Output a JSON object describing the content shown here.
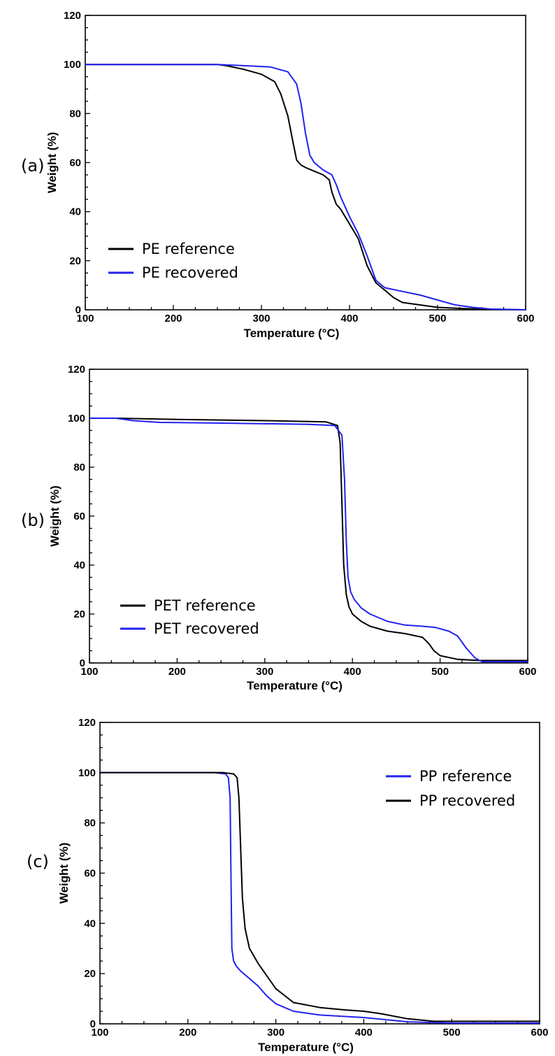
{
  "chart_data": [
    {
      "type": "line",
      "panel_label": "(a)",
      "xlabel": "Temperature (°C)",
      "ylabel": "Weight (%)",
      "xlim": [
        100,
        600
      ],
      "ylim": [
        0,
        120
      ],
      "xticks": [
        100,
        200,
        300,
        400,
        500,
        600
      ],
      "yticks": [
        0,
        20,
        40,
        60,
        80,
        100,
        120
      ],
      "grid": false,
      "legend_position": "bottom-left",
      "series": [
        {
          "name": "PE reference",
          "color": "#000000",
          "x": [
            100,
            250,
            260,
            280,
            300,
            315,
            322,
            330,
            336,
            340,
            345,
            350,
            360,
            370,
            377,
            380,
            385,
            390,
            400,
            410,
            420,
            430,
            440,
            450,
            460,
            480,
            500,
            530,
            560,
            600
          ],
          "y": [
            100,
            100,
            99.5,
            98,
            96,
            93,
            88,
            79,
            68,
            61,
            59,
            58,
            56.5,
            55,
            53,
            48,
            43,
            41,
            35,
            29,
            18,
            11,
            8,
            5,
            3,
            2,
            1,
            0.5,
            0.2,
            0
          ]
        },
        {
          "name": "PE recovered",
          "color": "#2222ee",
          "x": [
            100,
            250,
            280,
            310,
            330,
            340,
            345,
            350,
            355,
            360,
            370,
            375,
            380,
            385,
            390,
            400,
            410,
            420,
            430,
            440,
            460,
            480,
            500,
            520,
            540,
            560,
            600
          ],
          "y": [
            100,
            100,
            99.5,
            99,
            97,
            92,
            84,
            72,
            63,
            60,
            57,
            56,
            55,
            51,
            46,
            38,
            31,
            22,
            12,
            9,
            7.5,
            6,
            4,
            2,
            1,
            0.3,
            0
          ]
        }
      ]
    },
    {
      "type": "line",
      "panel_label": "(b)",
      "xlabel": "Temperature (°C)",
      "ylabel": "Weight (%)",
      "xlim": [
        100,
        600
      ],
      "ylim": [
        0,
        120
      ],
      "xticks": [
        100,
        200,
        300,
        400,
        500,
        600
      ],
      "yticks": [
        0,
        20,
        40,
        60,
        80,
        100,
        120
      ],
      "grid": false,
      "legend_position": "bottom-left",
      "series": [
        {
          "name": "PET reference",
          "color": "#000000",
          "x": [
            100,
            130,
            200,
            300,
            370,
            383,
            386,
            388,
            390,
            393,
            396,
            400,
            410,
            420,
            440,
            460,
            480,
            487,
            493,
            500,
            520,
            545,
            600
          ],
          "y": [
            100,
            100,
            99.5,
            99,
            98.5,
            97,
            90,
            65,
            40,
            28,
            23,
            20,
            17,
            15,
            13,
            12,
            10.5,
            8,
            5,
            3,
            1.5,
            1,
            1
          ]
        },
        {
          "name": "PET recovered",
          "color": "#2222ee",
          "x": [
            100,
            130,
            150,
            180,
            250,
            350,
            380,
            388,
            391,
            393,
            395,
            398,
            402,
            410,
            420,
            440,
            460,
            480,
            495,
            510,
            520,
            530,
            540,
            548,
            600
          ],
          "y": [
            100,
            100,
            99,
            98.3,
            98,
            97.5,
            97,
            93,
            75,
            50,
            35,
            29,
            26,
            22.5,
            20,
            17,
            15.5,
            15,
            14.5,
            13,
            11,
            6,
            2,
            0.5,
            0.5
          ]
        }
      ]
    },
    {
      "type": "line",
      "panel_label": "(c)",
      "xlabel": "Temperature (°C)",
      "ylabel": "Weight (%)",
      "xlim": [
        100,
        600
      ],
      "ylim": [
        0,
        120
      ],
      "xticks": [
        100,
        200,
        300,
        400,
        500,
        600
      ],
      "yticks": [
        0,
        20,
        40,
        60,
        80,
        100,
        120
      ],
      "grid": false,
      "legend_position": "top-right",
      "series": [
        {
          "name": "PP reference",
          "color": "#2222ee",
          "x": [
            100,
            230,
            243,
            246,
            248,
            249,
            250,
            252,
            255,
            260,
            270,
            280,
            290,
            300,
            320,
            350,
            400,
            450,
            500,
            600
          ],
          "y": [
            100,
            100,
            99.5,
            98,
            90,
            60,
            30,
            25,
            23,
            21,
            18,
            15,
            11,
            8,
            5,
            3.5,
            2.5,
            0.8,
            0.3,
            0.3
          ]
        },
        {
          "name": "PP recovered",
          "color": "#000000",
          "x": [
            100,
            240,
            252,
            256,
            258,
            260,
            262,
            265,
            270,
            280,
            290,
            300,
            320,
            350,
            380,
            400,
            420,
            450,
            480,
            600
          ],
          "y": [
            100,
            100,
            99.5,
            98,
            90,
            70,
            50,
            38,
            30,
            24,
            19,
            14,
            8.5,
            6.5,
            5.5,
            5,
            4,
            2,
            1,
            1
          ]
        }
      ]
    }
  ]
}
